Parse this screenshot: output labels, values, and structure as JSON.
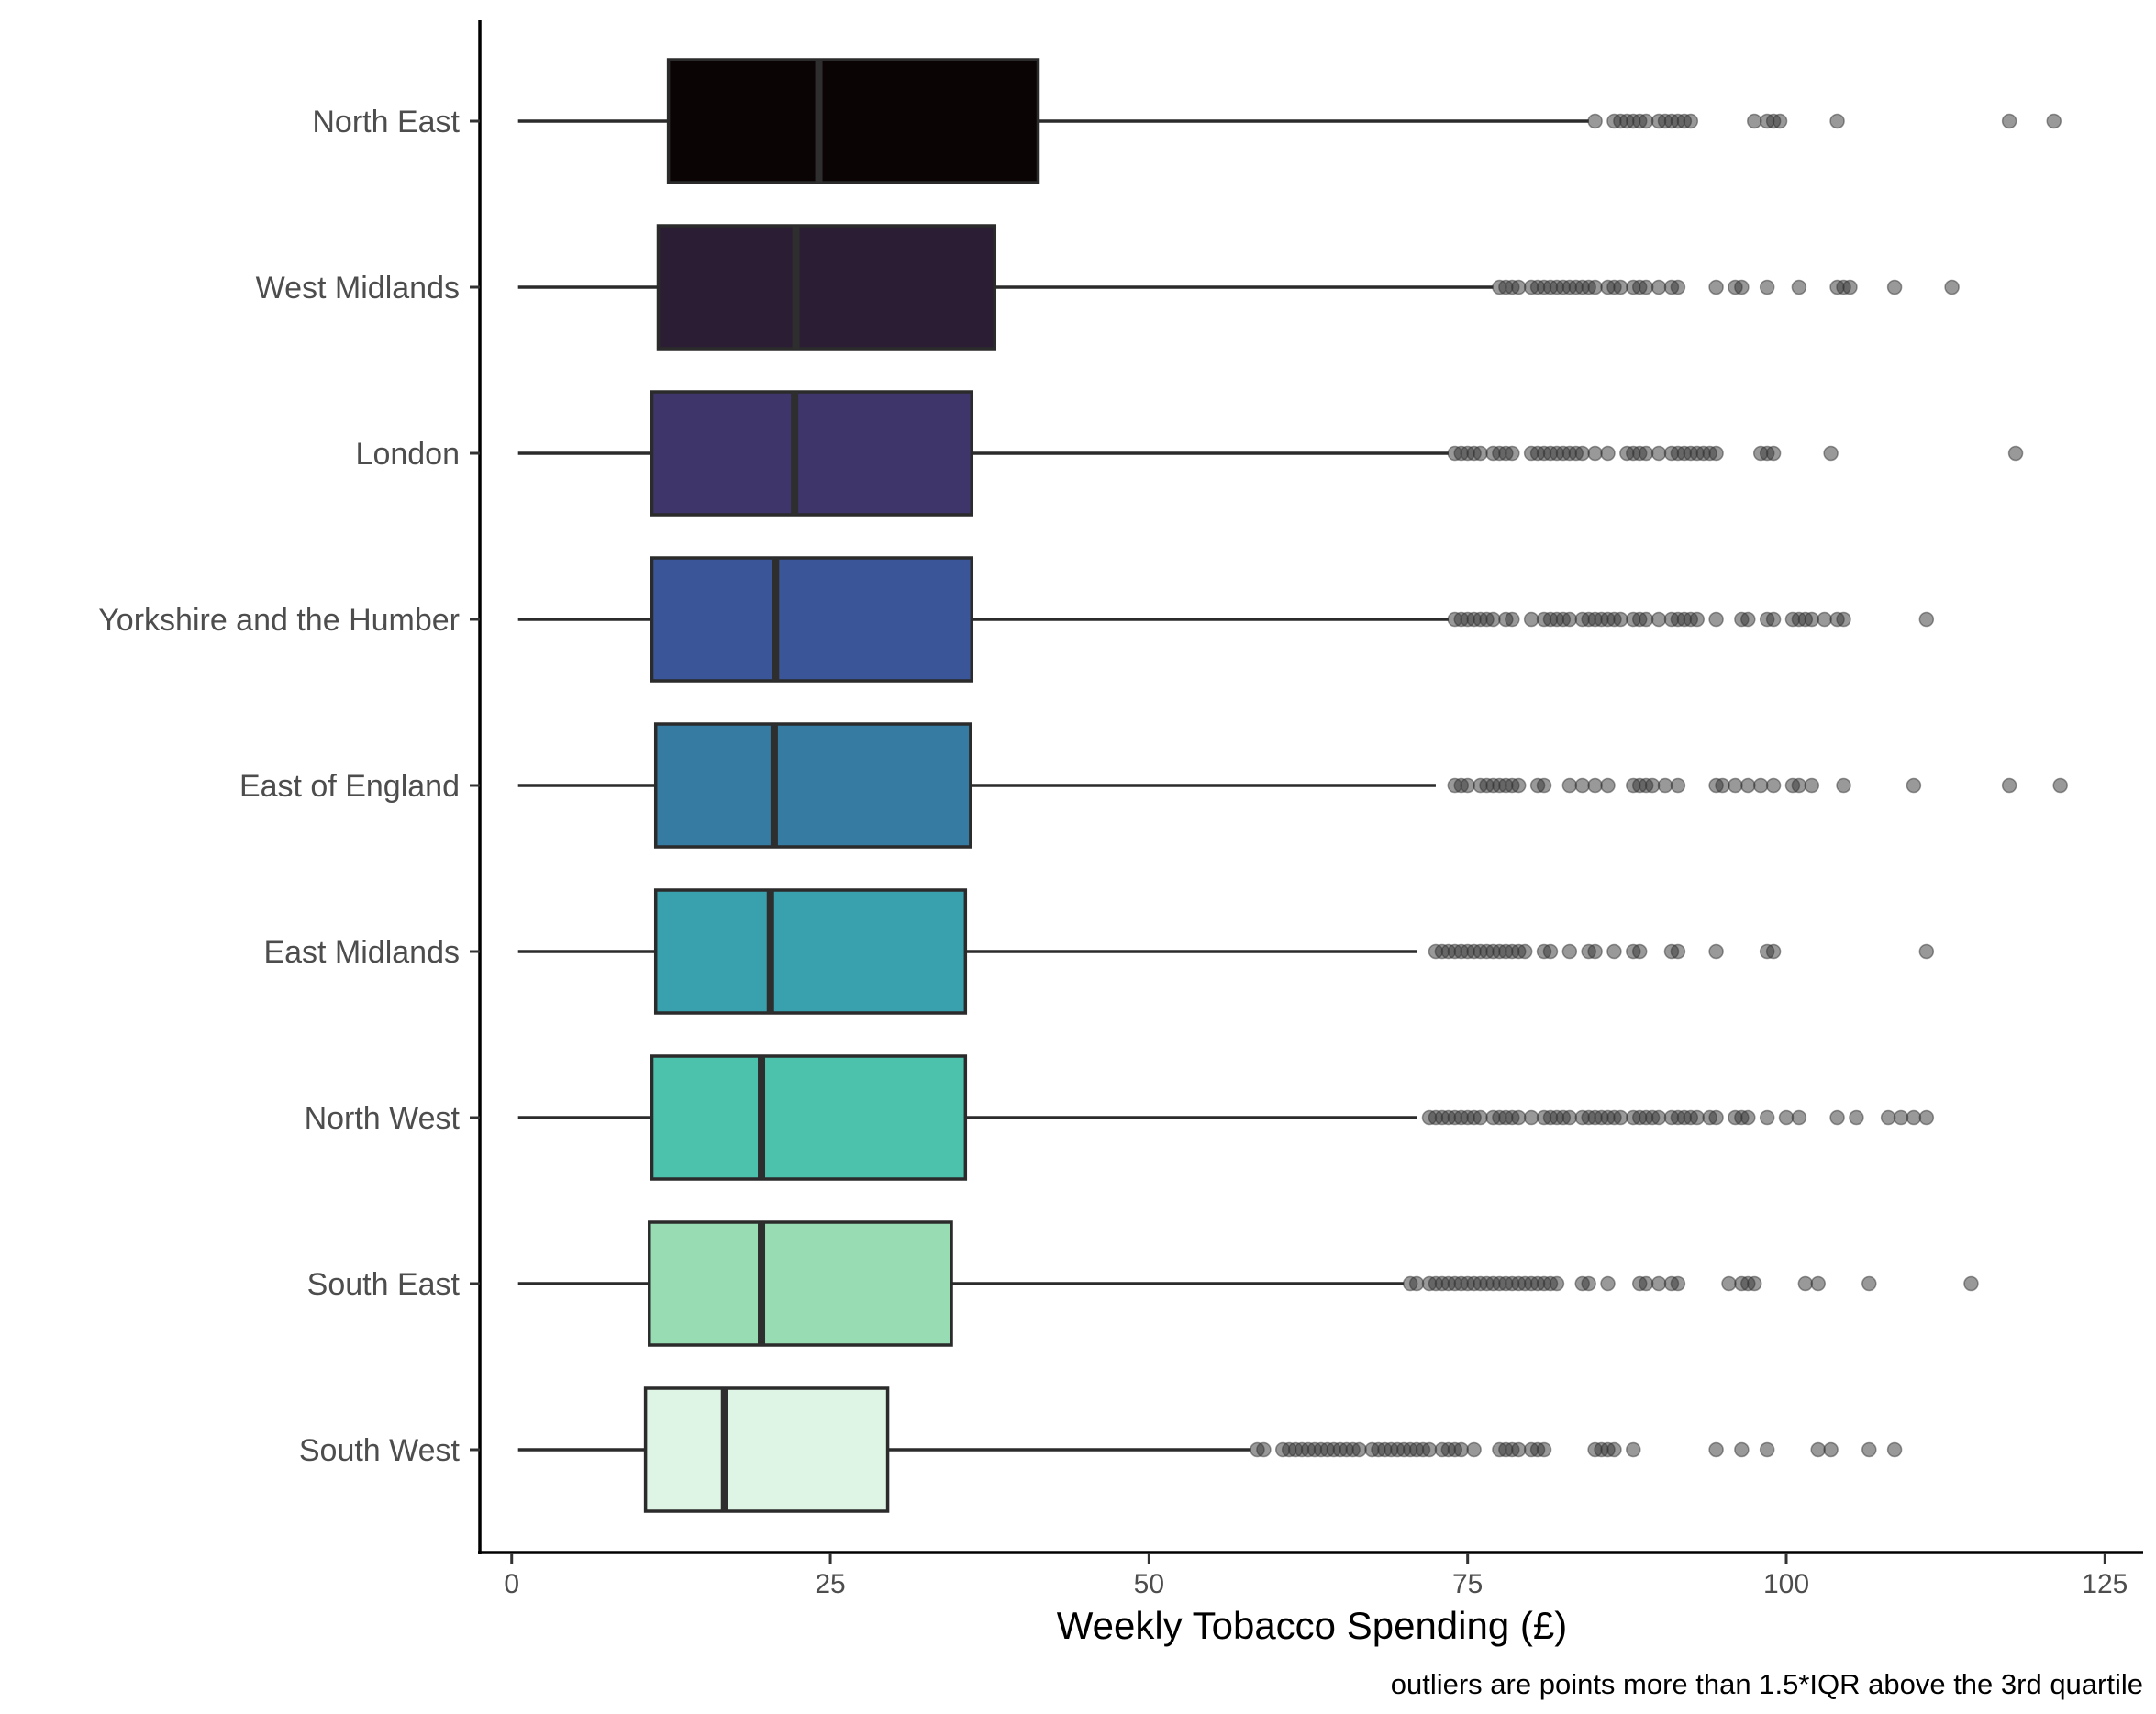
{
  "chart_data": {
    "type": "boxplot",
    "orientation": "horizontal",
    "xlabel": "Weekly Tobacco Spending (£)",
    "ylabel": "",
    "caption": "outliers are points more than 1.5*IQR above the 3rd quartile",
    "xlim": [
      -2.5,
      128
    ],
    "xticks": [
      0,
      25,
      50,
      75,
      100,
      125
    ],
    "grid": false,
    "legend": "none",
    "categories": [
      "North East",
      "West Midlands",
      "London",
      "Yorkshire and the Humber",
      "East of England",
      "East Midlands",
      "North West",
      "South East",
      "South West"
    ],
    "boxes": [
      {
        "region": "North East",
        "min": 0.5,
        "q1": 12.3,
        "median": 24.1,
        "q3": 41.3,
        "whisker_high": 84.5,
        "color": "#0b0405",
        "outliers": [
          85,
          86.5,
          87,
          87.5,
          88,
          88.5,
          89,
          90,
          90.5,
          91,
          91.5,
          92,
          92.5,
          97.5,
          98.5,
          99,
          99.5,
          104,
          117.5,
          121
        ]
      },
      {
        "region": "West Midlands",
        "min": 0.5,
        "q1": 11.5,
        "median": 22.3,
        "q3": 37.9,
        "whisker_high": 77,
        "color": "#2b1e34",
        "outliers": [
          77.5,
          78,
          78.5,
          79,
          80,
          80.5,
          81,
          81.5,
          82,
          82.5,
          83,
          83.5,
          84,
          84.5,
          85,
          86,
          86.5,
          87,
          88,
          88.5,
          89,
          90,
          91,
          91.5,
          94.5,
          96,
          96.5,
          98.5,
          101,
          104,
          104.5,
          105,
          108.5,
          113
        ]
      },
      {
        "region": "London",
        "min": 0.5,
        "q1": 11,
        "median": 22.2,
        "q3": 36.1,
        "whisker_high": 73.5,
        "color": "#3e356b",
        "outliers": [
          74,
          74.5,
          75,
          75.5,
          76,
          77,
          77.5,
          78,
          78.5,
          80,
          80.5,
          81,
          81.5,
          82,
          82.5,
          83,
          83.5,
          84,
          85,
          86,
          87.5,
          88,
          88.5,
          89,
          90,
          91,
          91.5,
          92,
          92.5,
          93,
          93.5,
          94,
          94.5,
          98,
          98.5,
          99,
          103.5,
          118
        ]
      },
      {
        "region": "Yorkshire and the Humber",
        "min": 0.5,
        "q1": 11,
        "median": 20.7,
        "q3": 36.1,
        "whisker_high": 73.5,
        "color": "#3b5698",
        "outliers": [
          74,
          74.5,
          75,
          75.5,
          76,
          76.5,
          77,
          78,
          78.5,
          80,
          81,
          81.5,
          82,
          82.5,
          83,
          84,
          84.5,
          85,
          85.5,
          86,
          86.5,
          87,
          88,
          88.5,
          89,
          90,
          91,
          91.5,
          92,
          92.5,
          93,
          94.5,
          96.5,
          97,
          98.5,
          99,
          100.5,
          101,
          101.5,
          102,
          103,
          104,
          104.5,
          111
        ]
      },
      {
        "region": "East of England",
        "min": 0.5,
        "q1": 11.3,
        "median": 20.6,
        "q3": 36,
        "whisker_high": 72.5,
        "color": "#357ba2",
        "outliers": [
          74,
          74.5,
          75,
          76,
          76.5,
          77,
          77.5,
          78,
          78.5,
          79,
          80.5,
          81,
          83,
          84,
          85,
          86,
          88,
          88.5,
          89,
          89.5,
          90.5,
          91.5,
          94.5,
          95,
          96,
          97,
          98,
          99,
          100.5,
          101,
          102,
          104.5,
          110,
          117.5,
          121.5
        ]
      },
      {
        "region": "East Midlands",
        "min": 0.5,
        "q1": 11.3,
        "median": 20.3,
        "q3": 35.6,
        "whisker_high": 71,
        "color": "#38a1ad",
        "outliers": [
          72.5,
          73,
          73.5,
          74,
          74.5,
          75,
          75.5,
          76,
          76.5,
          77,
          77.5,
          78,
          78.5,
          79,
          79.5,
          81,
          81.5,
          83,
          84.5,
          85,
          86.5,
          88,
          88.5,
          91,
          91.5,
          94.5,
          98.5,
          99,
          111
        ]
      },
      {
        "region": "North West",
        "min": 0.5,
        "q1": 11,
        "median": 19.6,
        "q3": 35.6,
        "whisker_high": 71,
        "color": "#4cc2ad",
        "outliers": [
          72,
          72.5,
          73,
          73.5,
          74,
          74.5,
          75,
          75.5,
          76,
          77,
          77.5,
          78,
          78.5,
          79,
          80,
          81,
          81.5,
          82,
          82.5,
          83,
          84,
          84.5,
          85,
          85.5,
          86,
          86.5,
          87,
          88,
          88.5,
          89,
          89.5,
          90,
          91,
          91.5,
          92,
          92.5,
          93,
          94,
          94.5,
          96,
          96.5,
          97,
          98.5,
          100,
          101,
          104,
          105.5,
          108,
          109,
          110,
          111
        ]
      },
      {
        "region": "South East",
        "min": 0.5,
        "q1": 10.8,
        "median": 19.6,
        "q3": 34.5,
        "whisker_high": 70,
        "color": "#98dcb4",
        "outliers": [
          70.5,
          71,
          72,
          72.5,
          73,
          73.5,
          74,
          74.5,
          75,
          75.5,
          76,
          76.5,
          77,
          77.5,
          78,
          78.5,
          79,
          79.5,
          80,
          80.5,
          81,
          81.5,
          82,
          84,
          84.5,
          86,
          88.5,
          89,
          90,
          91,
          91.5,
          95.5,
          96.5,
          97,
          97.5,
          101.5,
          102.5,
          106.5,
          114.5
        ]
      },
      {
        "region": "South West",
        "min": 0.5,
        "q1": 10.5,
        "median": 16.7,
        "q3": 29.5,
        "whisker_high": 58,
        "color": "#def5e5",
        "outliers": [
          58.5,
          59,
          60.5,
          61,
          61.5,
          62,
          62.5,
          63,
          63.5,
          64,
          64.5,
          65,
          65.5,
          66,
          66.5,
          67.5,
          68,
          68.5,
          69,
          69.5,
          70,
          70.5,
          71,
          71.5,
          72,
          73,
          73.5,
          74,
          74.5,
          75.5,
          77.5,
          78,
          78.5,
          79,
          80,
          80.5,
          81,
          85,
          85.5,
          86,
          86.5,
          88,
          94.5,
          96.5,
          98.5,
          102.5,
          103.5,
          106.5,
          108.5
        ]
      }
    ]
  }
}
